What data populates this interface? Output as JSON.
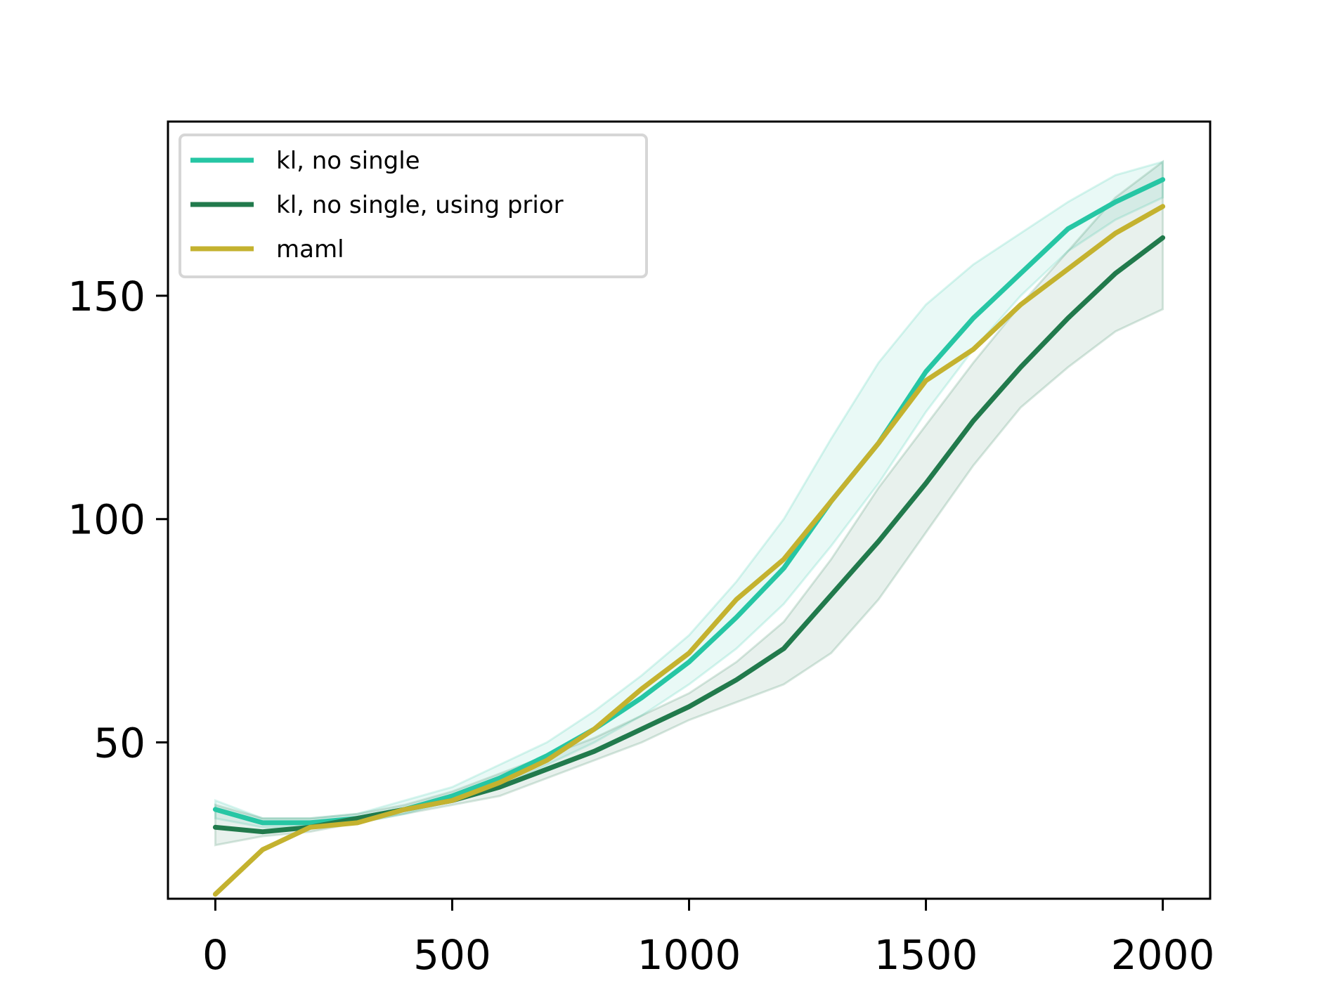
{
  "chart_data": {
    "type": "line",
    "title": "",
    "xlabel": "",
    "ylabel": "",
    "xlim": [
      -100,
      2100
    ],
    "ylim": [
      15,
      189
    ],
    "xticks": [
      0,
      500,
      1000,
      1500,
      2000
    ],
    "yticks": [
      50,
      100,
      150
    ],
    "grid": false,
    "legend_position": "top-left",
    "x": [
      0,
      100,
      200,
      300,
      400,
      500,
      600,
      700,
      800,
      900,
      1000,
      1100,
      1200,
      1300,
      1400,
      1500,
      1600,
      1700,
      1800,
      1900,
      2000
    ],
    "series": [
      {
        "name": "kl, no single",
        "color": "#26c6a4",
        "values": [
          35,
          32,
          32,
          33,
          35,
          38,
          42,
          47,
          53,
          60,
          68,
          78,
          89,
          104,
          117,
          133,
          145,
          155,
          165,
          171,
          176
        ],
        "lower": [
          33,
          31,
          31,
          32,
          34,
          37,
          40,
          45,
          50,
          56,
          63,
          71,
          81,
          94,
          108,
          124,
          138,
          150,
          160,
          167,
          172
        ],
        "upper": [
          37,
          33,
          33,
          34,
          37,
          40,
          45,
          50,
          57,
          65,
          74,
          86,
          100,
          118,
          135,
          148,
          157,
          164,
          171,
          177,
          180
        ]
      },
      {
        "name": "kl, no single, using prior",
        "color": "#217a4c",
        "values": [
          31,
          30,
          31,
          33,
          35,
          37,
          40,
          44,
          48,
          53,
          58,
          64,
          71,
          83,
          95,
          108,
          122,
          134,
          145,
          155,
          163
        ],
        "lower": [
          27,
          29,
          30,
          32,
          34,
          36,
          38,
          42,
          46,
          50,
          55,
          59,
          63,
          70,
          82,
          97,
          112,
          125,
          134,
          142,
          147
        ],
        "upper": [
          36,
          33,
          33,
          34,
          36,
          39,
          43,
          47,
          51,
          56,
          61,
          68,
          77,
          91,
          107,
          121,
          135,
          148,
          160,
          172,
          180
        ]
      },
      {
        "name": "maml",
        "color": "#c4b22f",
        "values": [
          16,
          26,
          31,
          32,
          35,
          37,
          41,
          46,
          53,
          62,
          70,
          82,
          91,
          104,
          117,
          131,
          138,
          148,
          156,
          164,
          170
        ],
        "lower": [
          16,
          26,
          31,
          32,
          35,
          37,
          41,
          46,
          53,
          62,
          70,
          82,
          91,
          104,
          117,
          131,
          138,
          148,
          156,
          164,
          170
        ],
        "upper": [
          16,
          26,
          31,
          32,
          35,
          37,
          41,
          46,
          53,
          62,
          70,
          82,
          91,
          104,
          117,
          131,
          138,
          148,
          156,
          164,
          170
        ]
      }
    ]
  }
}
